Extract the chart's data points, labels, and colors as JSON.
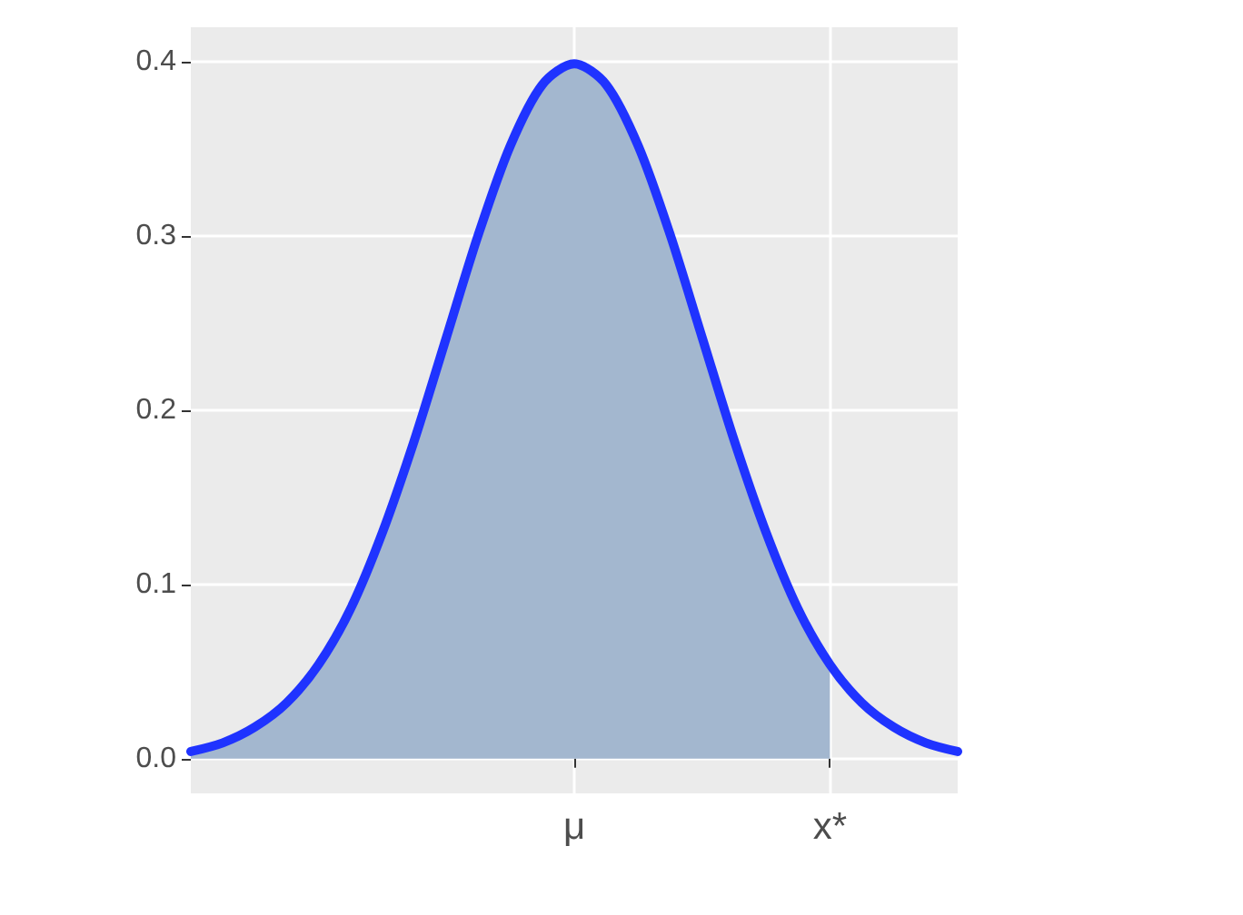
{
  "chart_data": {
    "type": "line",
    "ylim": [
      -0.02,
      0.42
    ],
    "categories": [
      null,
      null,
      null,
      null,
      null,
      null,
      null,
      null,
      null,
      null,
      null,
      null,
      "μ",
      null,
      null,
      null,
      null,
      null,
      null,
      null,
      "x*",
      null,
      null,
      null,
      null
    ],
    "yticks": [
      {
        "value": 0,
        "label": "0.0"
      },
      0.1,
      0.2,
      0.3,
      0.4
    ],
    "grid": true,
    "marker": "none",
    "line_style": "solid",
    "series": [
      {
        "type": "area",
        "color": "#a3b7cf",
        "values": [
          0.004,
          0.009,
          0.018,
          0.032,
          0.054,
          0.086,
          0.13,
          0.183,
          0.242,
          0.301,
          0.352,
          0.387,
          0.399,
          0.387,
          0.352,
          0.301,
          0.242,
          0.183,
          0.13,
          0.086,
          0.054,
          null,
          null,
          null,
          null
        ]
      },
      {
        "color": "#1f33ff",
        "values": [
          0.004,
          0.009,
          0.018,
          0.032,
          0.054,
          0.086,
          0.13,
          0.183,
          0.242,
          0.301,
          0.352,
          0.387,
          0.399,
          0.387,
          0.352,
          0.301,
          0.242,
          0.183,
          0.13,
          0.086,
          0.054,
          0.032,
          0.018,
          0.009,
          0.004
        ]
      }
    ]
  }
}
